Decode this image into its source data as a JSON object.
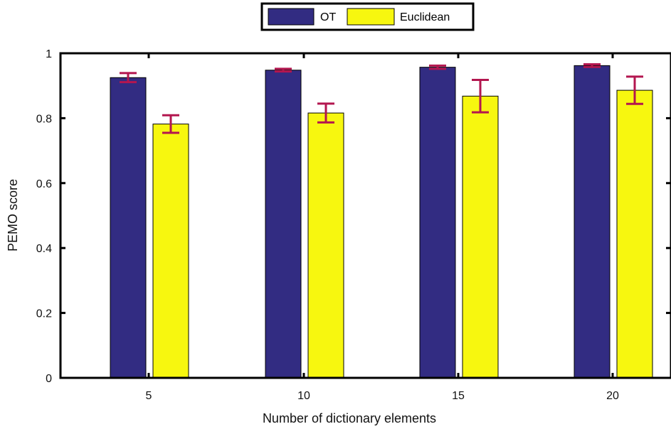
{
  "chart_data": {
    "type": "bar",
    "title": "",
    "xlabel": "Number of dictionary elements",
    "ylabel": "PEMO score",
    "categories": [
      "5",
      "10",
      "15",
      "20"
    ],
    "ylim": [
      0,
      1
    ],
    "yticks": [
      "0",
      "0.2",
      "0.4",
      "0.6",
      "0.8",
      "1"
    ],
    "series": [
      {
        "name": "OT",
        "color": "#322C82",
        "values": [
          0.925,
          0.948,
          0.957,
          0.962
        ],
        "errors": [
          0.014,
          0.004,
          0.005,
          0.004
        ]
      },
      {
        "name": "Euclidean",
        "color": "#F7F70F",
        "values": [
          0.782,
          0.816,
          0.868,
          0.886
        ],
        "errors": [
          0.027,
          0.029,
          0.05,
          0.042
        ]
      }
    ],
    "error_bar_color": "#B3164F",
    "legend": "top-center",
    "grid": false
  }
}
